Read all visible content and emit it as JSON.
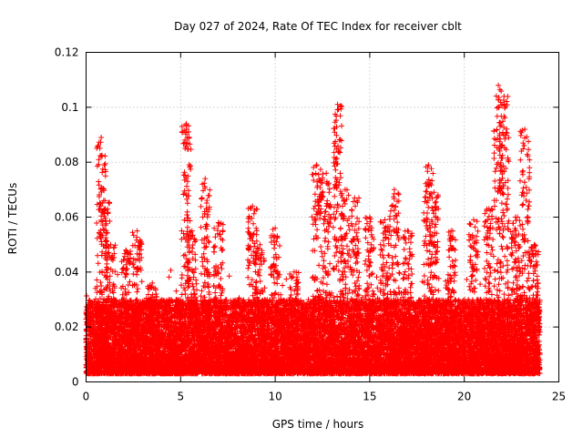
{
  "chart_data": {
    "type": "scatter",
    "title": "Day 027 of 2024, Rate Of TEC Index for receiver cblt",
    "xlabel": "GPS time / hours",
    "ylabel": "ROTI / TECUs",
    "xlim": [
      0,
      25
    ],
    "ylim": [
      0,
      0.12
    ],
    "xticks": [
      0,
      5,
      10,
      15,
      20,
      25
    ],
    "yticks": [
      0,
      0.02,
      0.04,
      0.06,
      0.08,
      0.1,
      0.12
    ],
    "xtick_labels": [
      "0",
      "5",
      "10",
      "15",
      "20",
      "25"
    ],
    "ytick_labels": [
      "0",
      "0.02",
      "0.04",
      "0.06",
      "0.08",
      "0.1",
      "0.12"
    ],
    "grid": true,
    "marker": "+",
    "color": "#ff0000",
    "series": [
      {
        "name": "ROTI",
        "background_envelope": {
          "x_range": [
            0,
            24
          ],
          "y_min": 0.003,
          "y_typical_max": 0.03,
          "points_per_hour": 700
        },
        "spikes": [
          {
            "x": 0.8,
            "y_max": 0.089
          },
          {
            "x": 1.0,
            "y_max": 0.066
          },
          {
            "x": 1.3,
            "y_max": 0.05
          },
          {
            "x": 2.1,
            "y_max": 0.048
          },
          {
            "x": 2.7,
            "y_max": 0.055
          },
          {
            "x": 3.5,
            "y_max": 0.036
          },
          {
            "x": 5.3,
            "y_max": 0.094
          },
          {
            "x": 5.6,
            "y_max": 0.055
          },
          {
            "x": 6.3,
            "y_max": 0.074
          },
          {
            "x": 7.0,
            "y_max": 0.058
          },
          {
            "x": 8.8,
            "y_max": 0.064
          },
          {
            "x": 9.2,
            "y_max": 0.05
          },
          {
            "x": 10.0,
            "y_max": 0.056
          },
          {
            "x": 11.0,
            "y_max": 0.04
          },
          {
            "x": 12.2,
            "y_max": 0.079
          },
          {
            "x": 12.7,
            "y_max": 0.076
          },
          {
            "x": 13.3,
            "y_max": 0.101
          },
          {
            "x": 13.7,
            "y_max": 0.07
          },
          {
            "x": 14.2,
            "y_max": 0.067
          },
          {
            "x": 15.0,
            "y_max": 0.06
          },
          {
            "x": 15.8,
            "y_max": 0.059
          },
          {
            "x": 16.3,
            "y_max": 0.07
          },
          {
            "x": 17.0,
            "y_max": 0.055
          },
          {
            "x": 18.1,
            "y_max": 0.079
          },
          {
            "x": 18.4,
            "y_max": 0.069
          },
          {
            "x": 19.3,
            "y_max": 0.055
          },
          {
            "x": 20.5,
            "y_max": 0.059
          },
          {
            "x": 21.3,
            "y_max": 0.063
          },
          {
            "x": 21.8,
            "y_max": 0.108
          },
          {
            "x": 22.1,
            "y_max": 0.104
          },
          {
            "x": 22.7,
            "y_max": 0.06
          },
          {
            "x": 23.2,
            "y_max": 0.092
          },
          {
            "x": 23.7,
            "y_max": 0.05
          }
        ]
      }
    ]
  }
}
